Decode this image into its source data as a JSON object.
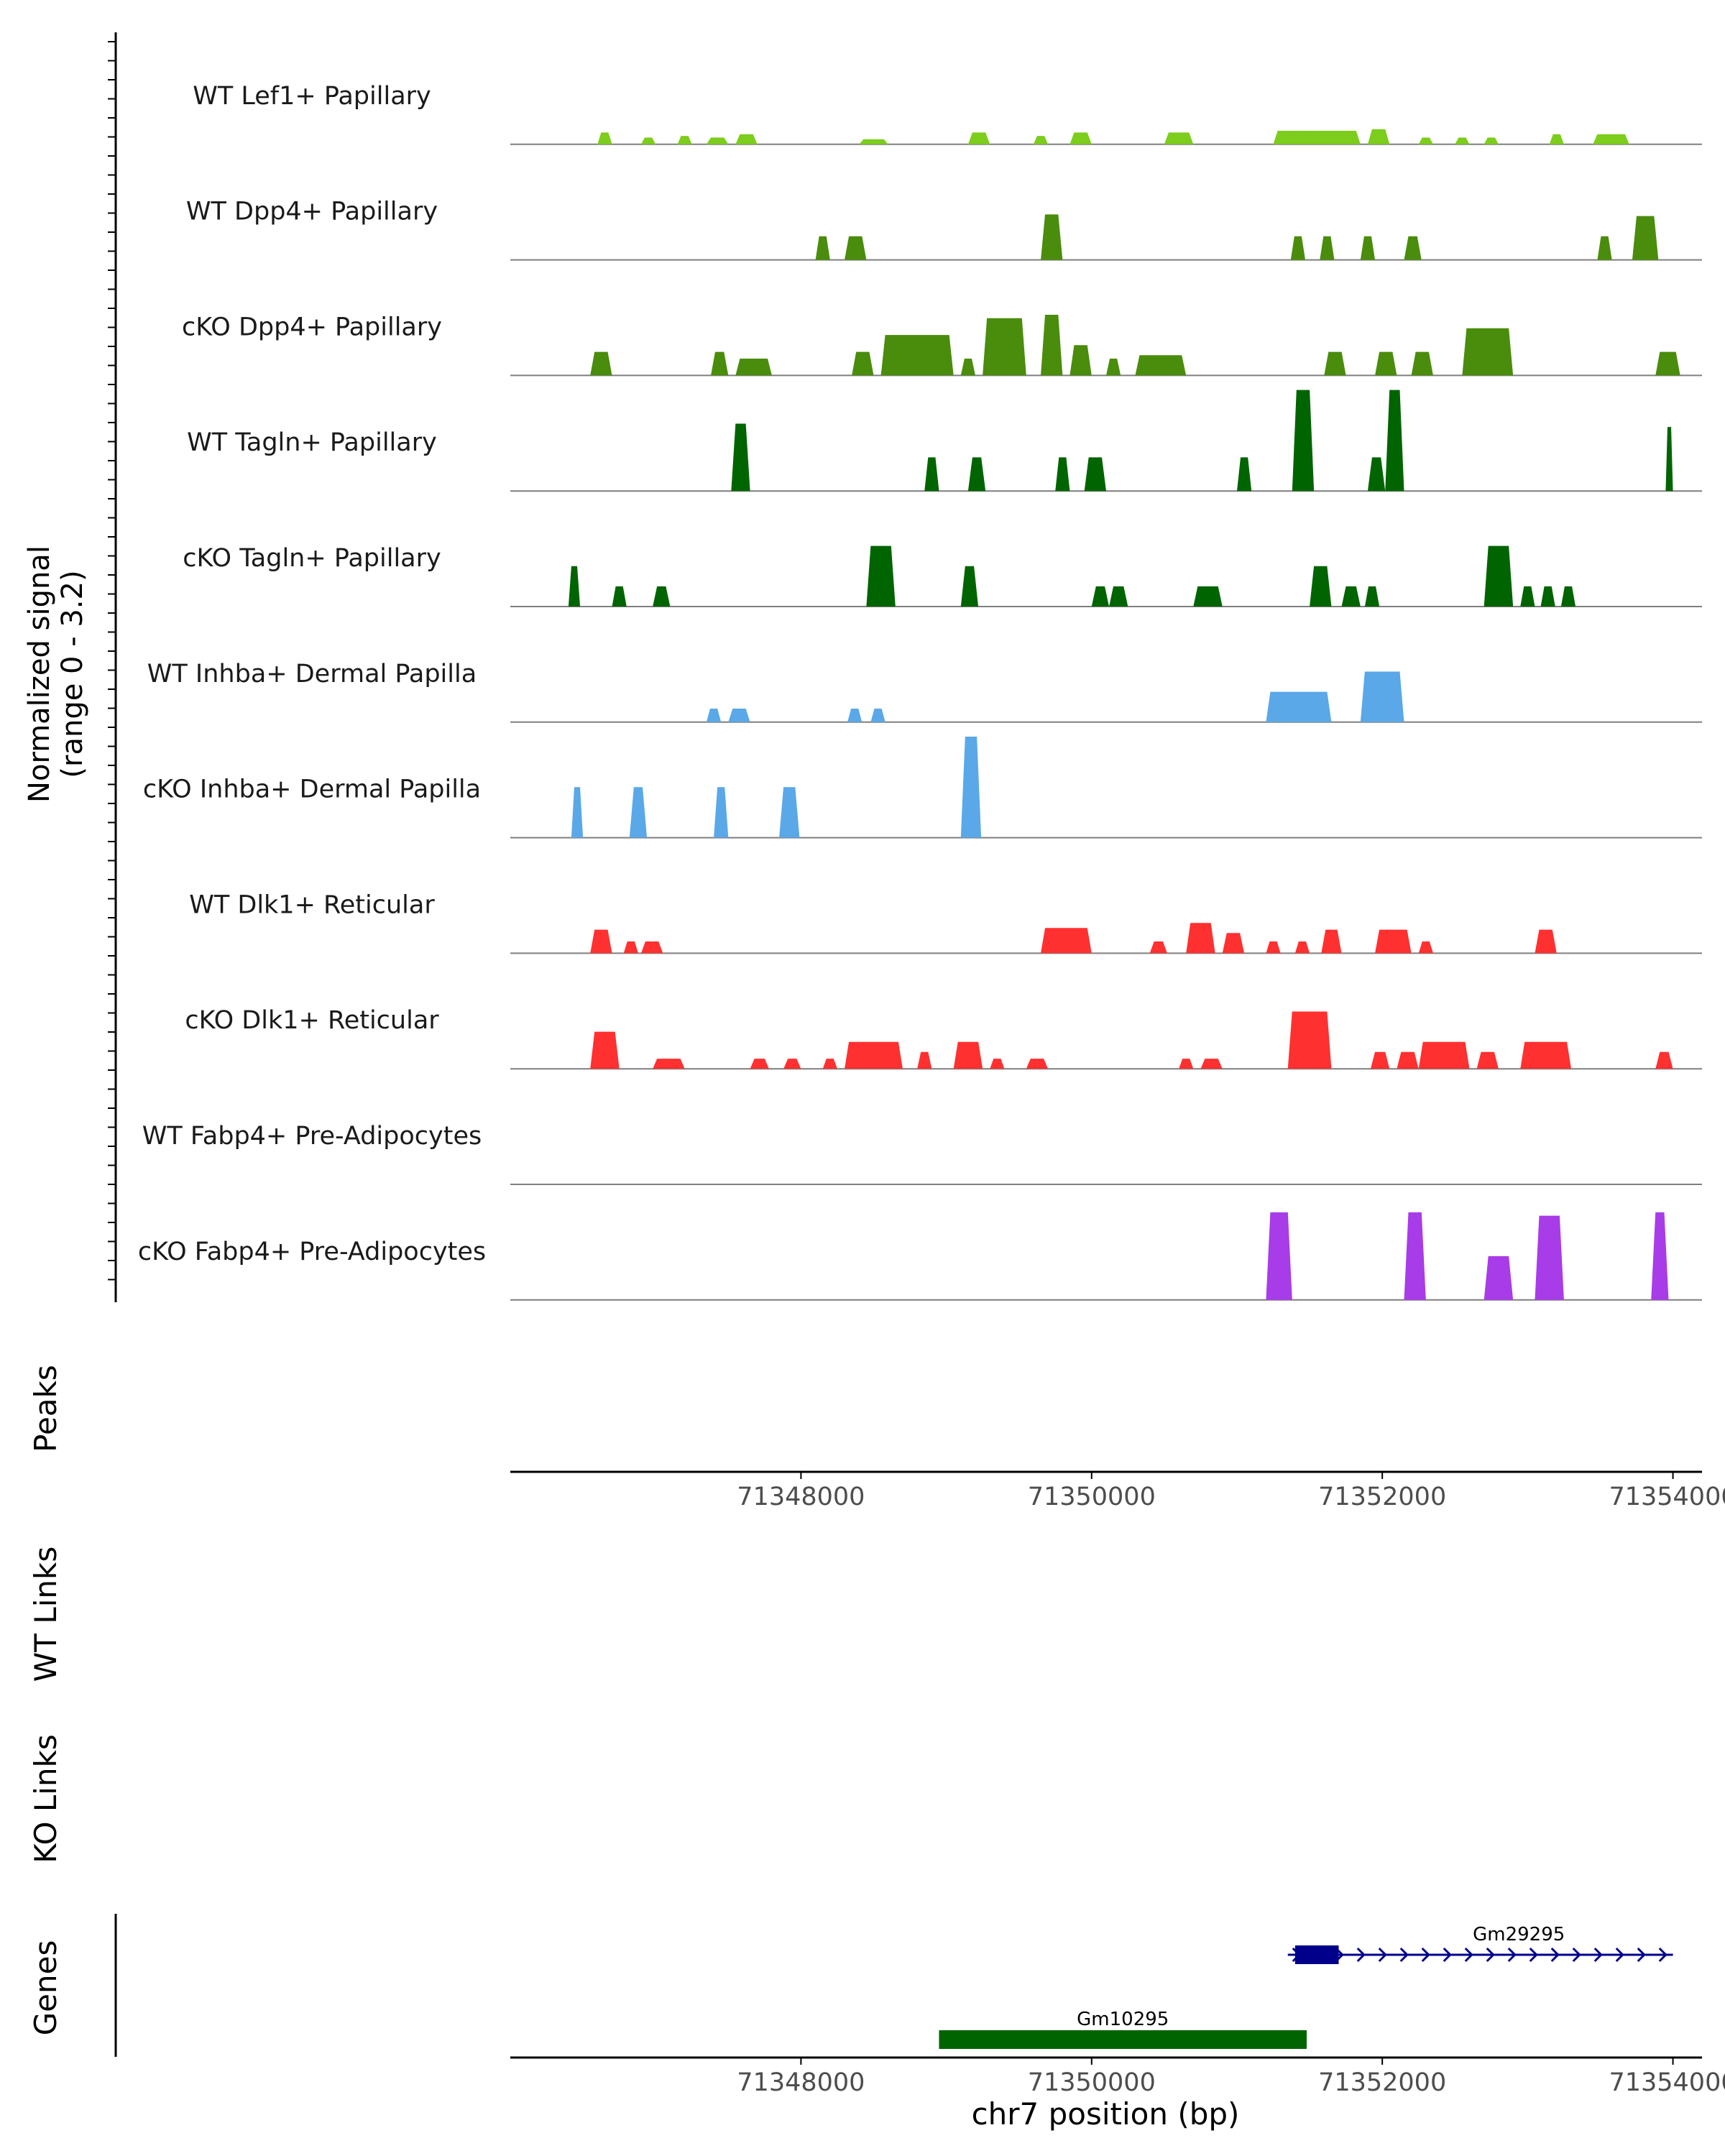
{
  "chart_data": {
    "type": "genome_coverage",
    "chromosome": "chr7",
    "xlabel": "chr7 position (bp)",
    "xlim": [
      71346000,
      71354200
    ],
    "x_ticks": [
      71348000,
      71350000,
      71352000,
      71354000
    ],
    "x_tick_labels": [
      "71348000",
      "71350000",
      "71352000",
      "71354000"
    ],
    "signal_ylabel_line1": "Normalized signal",
    "signal_ylabel_line2": "(range 0 - 3.2)",
    "signal_range": [
      0,
      3.2
    ],
    "tracks": [
      {
        "name": "WT Lef1+ Papillary",
        "color": "#7ccd1c",
        "peaks": [
          [
            71346600,
            71346700,
            0.35
          ],
          [
            71346900,
            71347000,
            0.2
          ],
          [
            71347150,
            71347250,
            0.25
          ],
          [
            71347350,
            71347500,
            0.2
          ],
          [
            71347550,
            71347700,
            0.3
          ],
          [
            71348400,
            71348600,
            0.15
          ],
          [
            71349150,
            71349300,
            0.35
          ],
          [
            71349600,
            71349700,
            0.25
          ],
          [
            71349850,
            71350000,
            0.35
          ],
          [
            71350500,
            71350700,
            0.35
          ],
          [
            71351250,
            71351850,
            0.4
          ],
          [
            71351900,
            71352050,
            0.45
          ],
          [
            71352250,
            71352350,
            0.2
          ],
          [
            71352500,
            71352600,
            0.2
          ],
          [
            71352700,
            71352800,
            0.2
          ],
          [
            71353150,
            71353250,
            0.3
          ],
          [
            71353450,
            71353700,
            0.3
          ]
        ]
      },
      {
        "name": "WT Dpp4+ Papillary",
        "color": "#4a8c0c",
        "peaks": [
          [
            71348100,
            71348200,
            0.7
          ],
          [
            71348300,
            71348450,
            0.7
          ],
          [
            71349650,
            71349800,
            1.35
          ],
          [
            71351370,
            71351470,
            0.7
          ],
          [
            71351570,
            71351670,
            0.7
          ],
          [
            71351850,
            71351950,
            0.7
          ],
          [
            71352150,
            71352270,
            0.7
          ],
          [
            71353480,
            71353580,
            0.7
          ],
          [
            71353720,
            71353900,
            1.3
          ]
        ]
      },
      {
        "name": "cKO Dpp4+ Papillary",
        "color": "#4a8c0c",
        "peaks": [
          [
            71346550,
            71346700,
            0.7
          ],
          [
            71347380,
            71347500,
            0.7
          ],
          [
            71347550,
            71347800,
            0.5
          ],
          [
            71348350,
            71348500,
            0.7
          ],
          [
            71348550,
            71349050,
            1.2
          ],
          [
            71349100,
            71349200,
            0.5
          ],
          [
            71349250,
            71349550,
            1.7
          ],
          [
            71349650,
            71349800,
            1.8
          ],
          [
            71349850,
            71350000,
            0.9
          ],
          [
            71350100,
            71350200,
            0.5
          ],
          [
            71350300,
            71350650,
            0.6
          ],
          [
            71351600,
            71351750,
            0.7
          ],
          [
            71351950,
            71352100,
            0.7
          ],
          [
            71352200,
            71352350,
            0.7
          ],
          [
            71352550,
            71352900,
            1.4
          ],
          [
            71353880,
            71354050,
            0.7
          ]
        ]
      },
      {
        "name": "WT Tagln+ Papillary",
        "color": "#006400",
        "peaks": [
          [
            71347520,
            71347650,
            2.0
          ],
          [
            71348850,
            71348950,
            1.0
          ],
          [
            71349150,
            71349270,
            1.0
          ],
          [
            71349750,
            71349850,
            1.0
          ],
          [
            71349950,
            71350100,
            1.0
          ],
          [
            71351000,
            71351100,
            1.0
          ],
          [
            71351380,
            71351530,
            3.0
          ],
          [
            71351900,
            71352020,
            1.0
          ],
          [
            71352020,
            71352150,
            3.0
          ],
          [
            71353950,
            71354000,
            1.9
          ]
        ]
      },
      {
        "name": "cKO Tagln+ Papillary",
        "color": "#006400",
        "peaks": [
          [
            71346400,
            71346480,
            1.2
          ],
          [
            71346700,
            71346800,
            0.6
          ],
          [
            71346980,
            71347100,
            0.6
          ],
          [
            71348450,
            71348650,
            1.8
          ],
          [
            71349100,
            71349220,
            1.2
          ],
          [
            71350000,
            71350120,
            0.6
          ],
          [
            71350120,
            71350250,
            0.6
          ],
          [
            71350700,
            71350900,
            0.6
          ],
          [
            71351500,
            71351650,
            1.2
          ],
          [
            71351720,
            71351850,
            0.6
          ],
          [
            71351880,
            71351980,
            0.6
          ],
          [
            71352700,
            71352900,
            1.8
          ],
          [
            71352950,
            71353050,
            0.6
          ],
          [
            71353090,
            71353190,
            0.6
          ],
          [
            71353230,
            71353330,
            0.6
          ]
        ]
      },
      {
        "name": "WT Inhba+ Dermal Papilla",
        "color": "#5aa8e8",
        "peaks": [
          [
            71347350,
            71347450,
            0.4
          ],
          [
            71347500,
            71347650,
            0.4
          ],
          [
            71348320,
            71348420,
            0.4
          ],
          [
            71348480,
            71348580,
            0.4
          ],
          [
            71351200,
            71351650,
            0.9
          ],
          [
            71351850,
            71352150,
            1.5
          ]
        ]
      },
      {
        "name": "cKO Inhba+ Dermal Papilla",
        "color": "#5aa8e8",
        "peaks": [
          [
            71346420,
            71346500,
            1.5
          ],
          [
            71346820,
            71346940,
            1.5
          ],
          [
            71347400,
            71347500,
            1.5
          ],
          [
            71347850,
            71347990,
            1.5
          ],
          [
            71349100,
            71349240,
            3.0
          ]
        ]
      },
      {
        "name": "WT Dlk1+ Reticular",
        "color": "#ff3030",
        "peaks": [
          [
            71346550,
            71346700,
            0.7
          ],
          [
            71346780,
            71346880,
            0.35
          ],
          [
            71346900,
            71347050,
            0.35
          ],
          [
            71349650,
            71350000,
            0.75
          ],
          [
            71350400,
            71350520,
            0.35
          ],
          [
            71350650,
            71350850,
            0.9
          ],
          [
            71350900,
            71351050,
            0.6
          ],
          [
            71351200,
            71351300,
            0.35
          ],
          [
            71351400,
            71351500,
            0.35
          ],
          [
            71351580,
            71351720,
            0.7
          ],
          [
            71351950,
            71352200,
            0.7
          ],
          [
            71352250,
            71352350,
            0.35
          ],
          [
            71353050,
            71353200,
            0.7
          ]
        ]
      },
      {
        "name": "cKO Dlk1+ Reticular",
        "color": "#ff3030",
        "peaks": [
          [
            71346550,
            71346750,
            1.1
          ],
          [
            71346980,
            71347200,
            0.3
          ],
          [
            71347650,
            71347780,
            0.3
          ],
          [
            71347880,
            71348000,
            0.3
          ],
          [
            71348150,
            71348250,
            0.3
          ],
          [
            71348300,
            71348700,
            0.8
          ],
          [
            71348800,
            71348900,
            0.5
          ],
          [
            71349050,
            71349250,
            0.8
          ],
          [
            71349300,
            71349400,
            0.3
          ],
          [
            71349550,
            71349700,
            0.3
          ],
          [
            71350600,
            71350700,
            0.3
          ],
          [
            71350750,
            71350900,
            0.3
          ],
          [
            71351350,
            71351650,
            1.7
          ],
          [
            71351920,
            71352050,
            0.5
          ],
          [
            71352100,
            71352250,
            0.5
          ],
          [
            71352250,
            71352600,
            0.8
          ],
          [
            71352650,
            71352800,
            0.5
          ],
          [
            71352950,
            71353300,
            0.8
          ],
          [
            71353880,
            71354000,
            0.5
          ]
        ]
      },
      {
        "name": "WT Fabp4+ Pre-Adipocytes",
        "color": "#a83ce8",
        "peaks": []
      },
      {
        "name": "cKO Fabp4+ Pre-Adipocytes",
        "color": "#a83ce8",
        "peaks": [
          [
            71351200,
            71351380,
            2.6
          ],
          [
            71352150,
            71352300,
            2.6
          ],
          [
            71352700,
            71352900,
            1.3
          ],
          [
            71353050,
            71353250,
            2.5
          ],
          [
            71353850,
            71353970,
            2.6
          ]
        ]
      }
    ],
    "aux_tracks": [
      "Peaks",
      "WT Links",
      "KO Links"
    ],
    "genes_label": "Genes",
    "genes": [
      {
        "name": "Gm29295",
        "start": 71351350,
        "end": 71354000,
        "exon_start": 71351400,
        "exon_end": 71351700,
        "strand": "+",
        "color": "#00008b"
      },
      {
        "name": "Gm10295",
        "start": 71348950,
        "end": 71351480,
        "exon_start": 71348950,
        "exon_end": 71351480,
        "strand": "+",
        "color": "#006400"
      }
    ]
  }
}
